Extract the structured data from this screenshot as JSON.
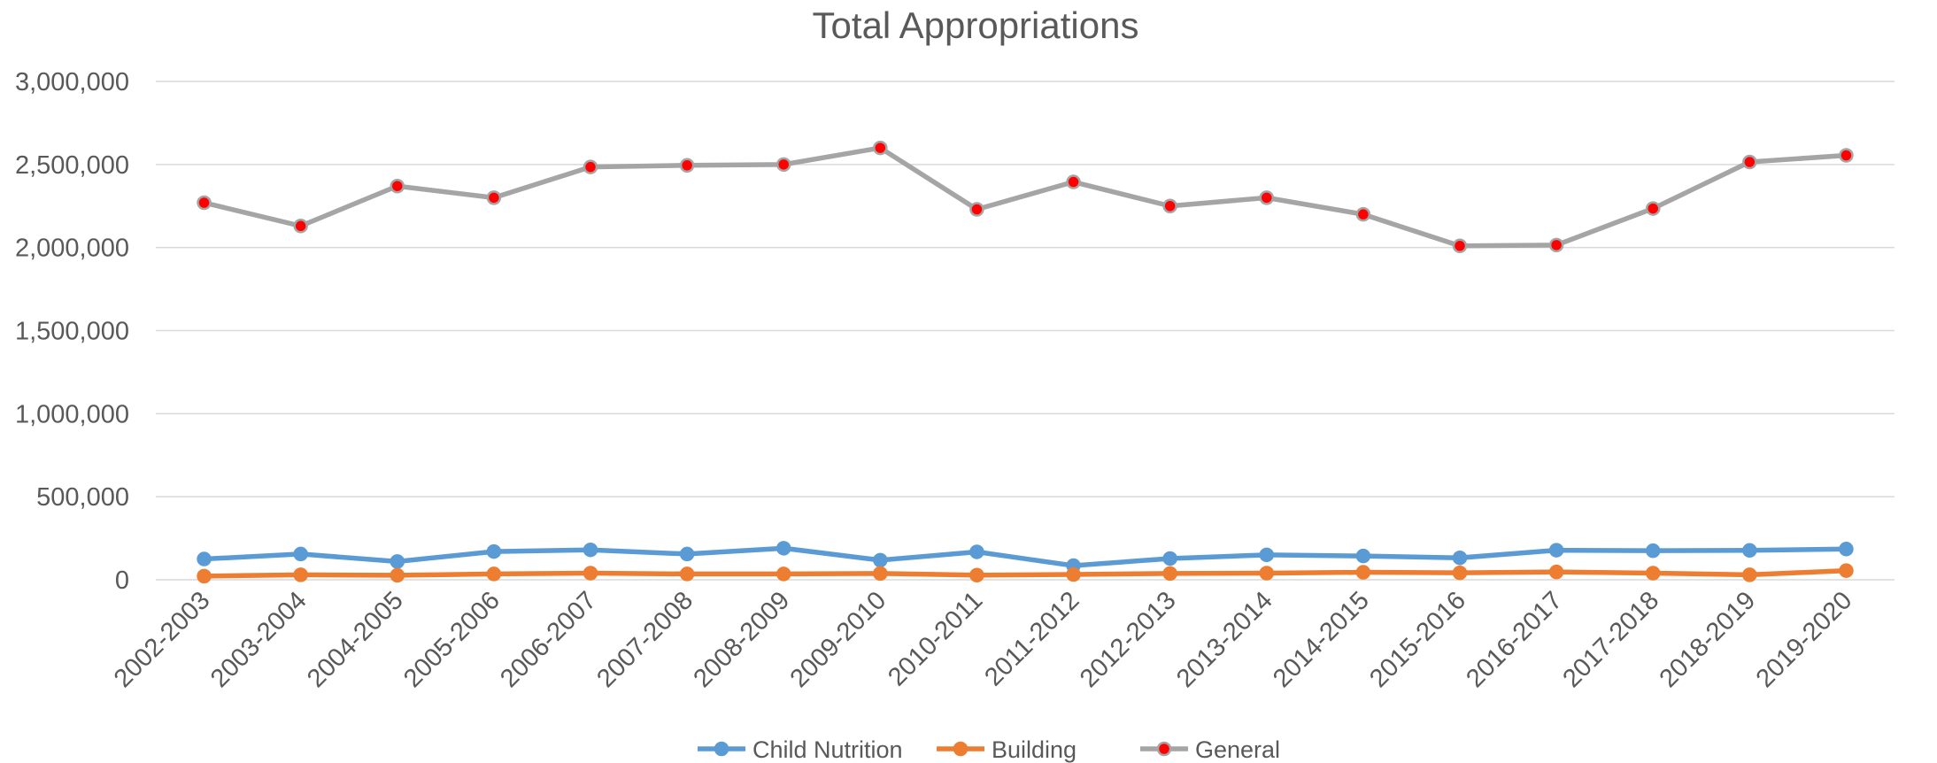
{
  "chart_data": {
    "type": "line",
    "title": "Total Appropriations",
    "xlabel": "",
    "ylabel": "",
    "ylim": [
      0,
      3000000
    ],
    "y_ticks": [
      0,
      500000,
      1000000,
      1500000,
      2000000,
      2500000,
      3000000
    ],
    "y_tick_labels": [
      "0",
      "500,000",
      "1,000,000",
      "1,500,000",
      "2,000,000",
      "2,500,000",
      "3,000,000"
    ],
    "grid": true,
    "legend_position": "bottom",
    "categories": [
      "2002-2003",
      "2003-2004",
      "2004-2005",
      "2005-2006",
      "2006-2007",
      "2007-2008",
      "2008-2009",
      "2009-2010",
      "2010-2011",
      "2011-2012",
      "2012-2013",
      "2013-2014",
      "2014-2015",
      "2015-2016",
      "2016-2017",
      "2017-2018",
      "2018-2019",
      "2019-2020"
    ],
    "series": [
      {
        "name": "Child Nutrition",
        "color": "#5b9bd5",
        "marker_color": "#5b9bd5",
        "values": [
          125000,
          155000,
          110000,
          170000,
          180000,
          155000,
          190000,
          118000,
          168000,
          85000,
          128000,
          150000,
          143000,
          132000,
          178000,
          175000,
          177000,
          185000
        ]
      },
      {
        "name": "Building",
        "color": "#ed7d31",
        "marker_color": "#ed7d31",
        "values": [
          22000,
          30000,
          27000,
          35000,
          40000,
          35000,
          35000,
          38000,
          28000,
          32000,
          38000,
          40000,
          45000,
          42000,
          47000,
          40000,
          30000,
          55000
        ]
      },
      {
        "name": "General",
        "color": "#a5a5a5",
        "marker_color": "#ff0000",
        "values": [
          2270000,
          2130000,
          2370000,
          2300000,
          2485000,
          2495000,
          2500000,
          2600000,
          2230000,
          2395000,
          2250000,
          2300000,
          2200000,
          2010000,
          2015000,
          2235000,
          2515000,
          2555000
        ]
      }
    ]
  }
}
